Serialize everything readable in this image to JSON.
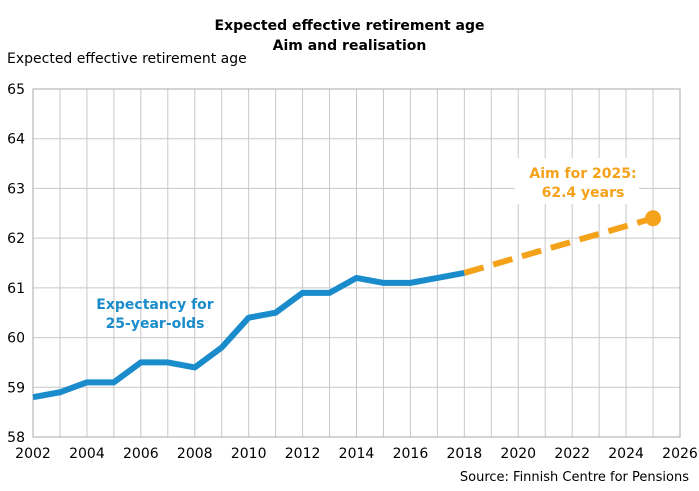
{
  "chart_data": {
    "type": "line",
    "title": "Expected effective retirement age",
    "subtitle": "Aim and realisation",
    "ylabel": "Expected effective retirement age",
    "xlabel": "",
    "xlim": [
      2002,
      2026
    ],
    "ylim": [
      58,
      65
    ],
    "x_ticks": [
      "2002",
      "2004",
      "2006",
      "2008",
      "2010",
      "2012",
      "2014",
      "2016",
      "2018",
      "2020",
      "2022",
      "2024",
      "2026"
    ],
    "y_ticks": [
      "58",
      "59",
      "60",
      "61",
      "62",
      "63",
      "64",
      "65"
    ],
    "grid": true,
    "series": [
      {
        "name": "Expectancy for 25-year-olds",
        "color": "#1a8ccb",
        "style": "solid",
        "x": [
          2002,
          2003,
          2004,
          2005,
          2006,
          2007,
          2008,
          2009,
          2010,
          2011,
          2012,
          2013,
          2014,
          2015,
          2016,
          2017,
          2018
        ],
        "y": [
          58.8,
          58.9,
          59.1,
          59.1,
          59.5,
          59.5,
          59.4,
          59.8,
          60.4,
          60.5,
          60.9,
          60.9,
          61.2,
          61.1,
          61.1,
          61.2,
          61.3
        ]
      },
      {
        "name": "Aim",
        "color": "#f5a21b",
        "style": "dashed",
        "x": [
          2018,
          2025
        ],
        "y": [
          61.3,
          62.4
        ]
      }
    ],
    "annotations": {
      "expectancy_line1": "Expectancy for",
      "expectancy_line2": "25-year-olds",
      "aim_line1": "Aim for 2025:",
      "aim_line2": "62.4 years"
    },
    "source": "Source: Finnish Centre for Pensions"
  }
}
